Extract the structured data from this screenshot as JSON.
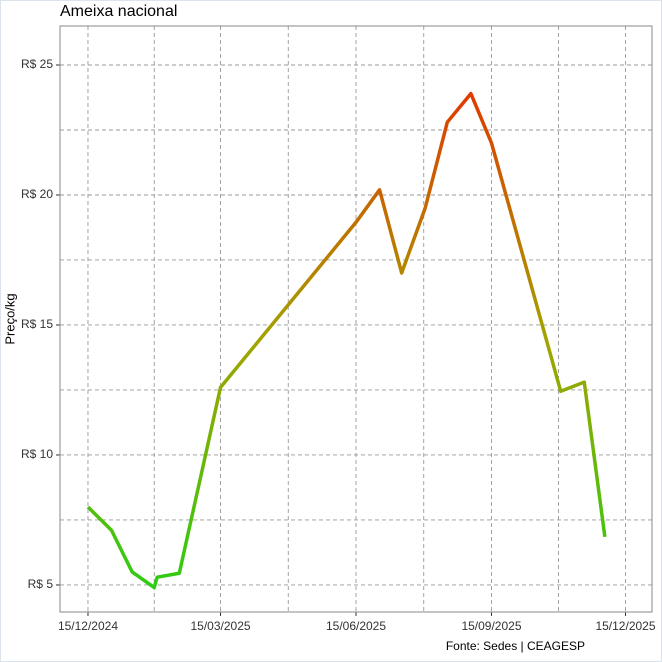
{
  "chart_data": {
    "type": "line",
    "title": "Ameixa nacional",
    "y_label": "Preço/kg",
    "caption": "Fonte: Sedes | CEAGESP",
    "x": [
      "2024-12-15",
      "2024-12-31",
      "2025-01-14",
      "2025-01-29",
      "2025-01-31",
      "2025-02-15",
      "2025-03-15",
      "2025-06-15",
      "2025-07-01",
      "2025-07-16",
      "2025-08-01",
      "2025-08-16",
      "2025-09-01",
      "2025-09-15",
      "2025-11-01",
      "2025-11-17",
      "2025-12-01"
    ],
    "series": [
      {
        "name": "Ameixa nacional",
        "colors": [
          "#2ecc12",
          "#a3a300",
          "#e03a00"
        ],
        "values": [
          8.0,
          7.1,
          5.5,
          4.9,
          5.3,
          5.45,
          12.6,
          18.95,
          20.2,
          17.0,
          19.5,
          22.8,
          23.9,
          22.0,
          12.45,
          12.8,
          6.85
        ]
      }
    ],
    "xlim": [
      "2024-11-26",
      "2026-01-02"
    ],
    "xticks": [
      {
        "value": "2024-12-15",
        "label": "15/12/2024"
      },
      {
        "value": "2025-03-15",
        "label": "15/03/2025"
      },
      {
        "value": "2025-06-15",
        "label": "15/06/2025"
      },
      {
        "value": "2025-09-15",
        "label": "15/09/2025"
      },
      {
        "value": "2025-12-15",
        "label": "15/12/2025"
      }
    ],
    "ylim": [
      3.96,
      26.5
    ],
    "yticks": [
      {
        "value": 5,
        "label": "R$ 5"
      },
      {
        "value": 10,
        "label": "R$ 10"
      },
      {
        "value": 15,
        "label": "R$ 15"
      },
      {
        "value": 20,
        "label": "R$ 20"
      },
      {
        "value": 25,
        "label": "R$ 25"
      }
    ],
    "grid": true
  }
}
